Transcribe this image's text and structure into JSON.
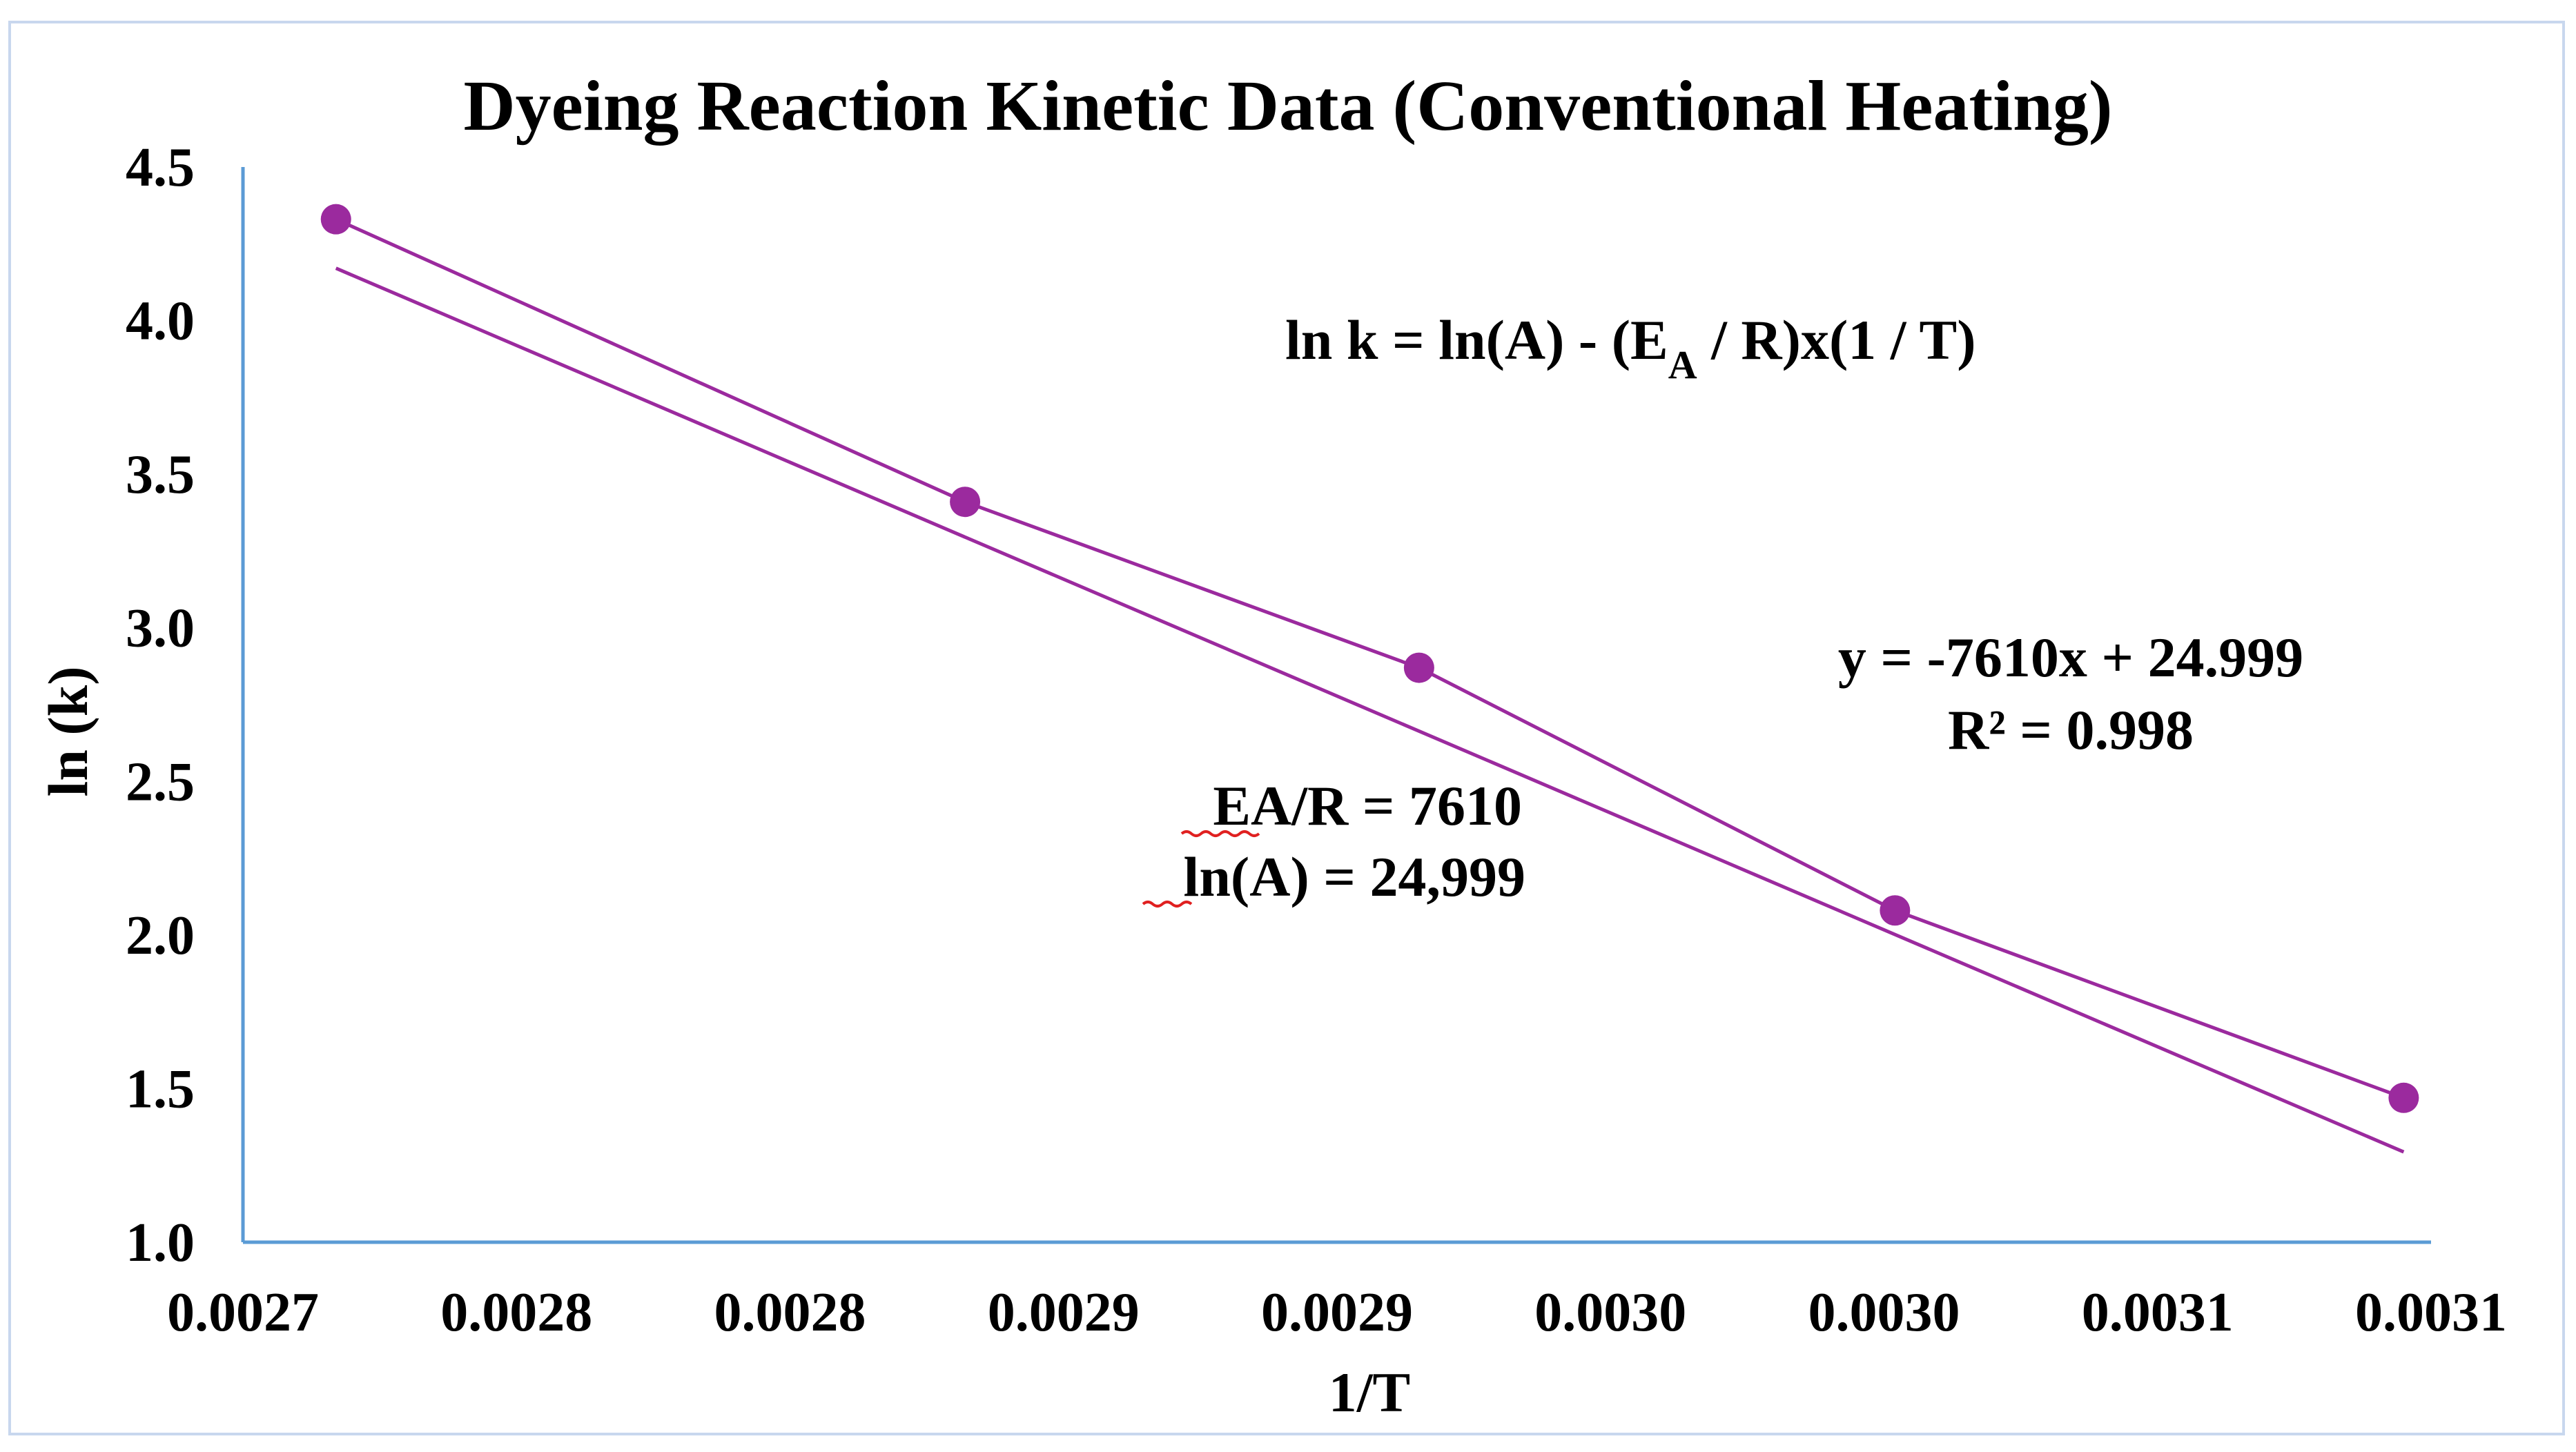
{
  "chart_data": {
    "type": "scatter",
    "title": "Dyeing Reaction Kinetic Data (Conventional Heating)",
    "xlabel": "1/T",
    "ylabel": "ln (k)",
    "xlim": [
      0.00272,
      0.00312
    ],
    "ylim": [
      1.0,
      4.5
    ],
    "x_tick_values": [
      0.00272,
      0.00277,
      0.00282,
      0.00287,
      0.00292,
      0.00297,
      0.00302,
      0.00307,
      0.00312
    ],
    "x_tick_labels": [
      "0.0027",
      "0.0028",
      "0.0028",
      "0.0029",
      "0.0029",
      "0.0030",
      "0.0030",
      "0.0031",
      "0.0031"
    ],
    "y_tick_values": [
      1.0,
      1.5,
      2.0,
      2.5,
      3.0,
      3.5,
      4.0,
      4.5
    ],
    "y_tick_labels": [
      "1.0",
      "1.5",
      "2.0",
      "2.5",
      "3.0",
      "3.5",
      "4.0",
      "4.5"
    ],
    "grid": false,
    "series": [
      {
        "name": "ln (k)",
        "color": "#9b2a9e",
        "x": [
          0.002737,
          0.002852,
          0.002935,
          0.003022,
          0.003115
        ],
        "y": [
          4.33,
          3.41,
          2.87,
          2.08,
          1.47
        ]
      }
    ],
    "trendline": {
      "type": "linear",
      "slope": -7610,
      "intercept": 24.999,
      "color": "#9b2a9e",
      "equation_label": "y = -7610x + 24.999",
      "r2_label": "R² = 0.998"
    },
    "annotations": {
      "formula_main": "ln k = ln(A) - (E",
      "formula_sub": "A",
      "formula_tail": " / R)x(1 / T)",
      "ea_r_label": "EA/R = 7610",
      "ln_a_label": "ln(A) = 24,999"
    },
    "colors": {
      "axis": "#5b9bd5",
      "series": "#9b2a9e",
      "spellcheck": "#e02020"
    }
  }
}
